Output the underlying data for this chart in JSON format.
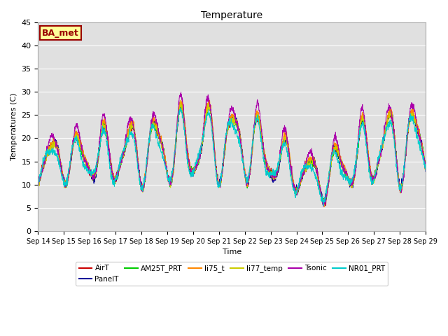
{
  "title": "Temperature",
  "ylabel": "Temperatures (C)",
  "xlabel": "Time",
  "ylim": [
    0,
    45
  ],
  "x_tick_labels": [
    "Sep 14",
    "Sep 15",
    "Sep 16",
    "Sep 17",
    "Sep 18",
    "Sep 19",
    "Sep 20",
    "Sep 21",
    "Sep 22",
    "Sep 23",
    "Sep 24",
    "Sep 25",
    "Sep 26",
    "Sep 27",
    "Sep 28",
    "Sep 29"
  ],
  "plot_bg_color": "#e0e0e0",
  "fig_bg_color": "#ffffff",
  "annotation_text": "BA_met",
  "annotation_bg": "#ffff99",
  "annotation_border": "#990000",
  "annotation_text_color": "#990000",
  "series": [
    {
      "label": "AirT",
      "color": "#cc0000"
    },
    {
      "label": "PanelT",
      "color": "#000099"
    },
    {
      "label": "AM25T_PRT",
      "color": "#00cc00"
    },
    {
      "label": "li75_t",
      "color": "#ff8800"
    },
    {
      "label": "li77_temp",
      "color": "#cccc00"
    },
    {
      "label": "Tsonic",
      "color": "#aa00aa"
    },
    {
      "label": "NR01_PRT",
      "color": "#00cccc"
    }
  ],
  "grid_color": "#ffffff",
  "yticks": [
    0,
    5,
    10,
    15,
    20,
    25,
    30,
    35,
    40,
    45
  ],
  "n_days": 15,
  "points_per_day": 144,
  "seed": 12345
}
